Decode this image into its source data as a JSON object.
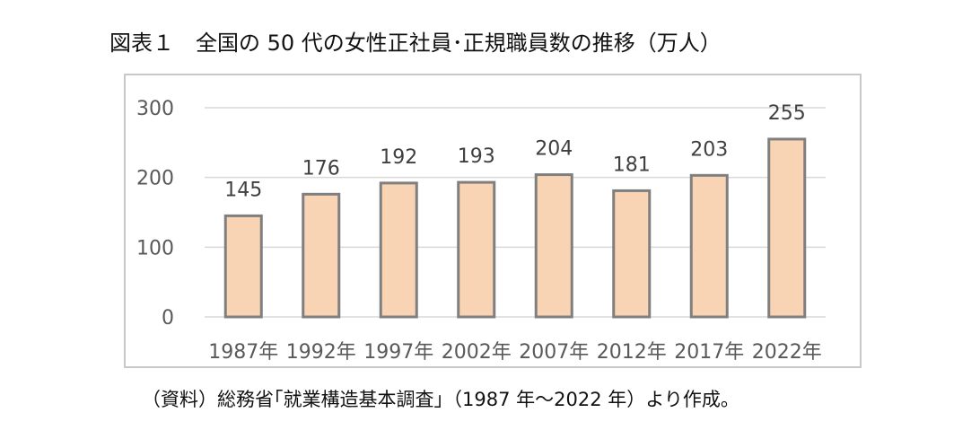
{
  "title": "図表１　全国の 50 代の女性正社員･正規職員数の推移（万人）",
  "source": "（資料）総務省｢就業構造基本調査｣（1987 年～2022 年）より作成。",
  "colors": {
    "bar_fill": "#f9d4b4",
    "bar_stroke": "#7f7f7f",
    "grid": "#d9d9d9",
    "tick_text": "#595959",
    "label_text": "#404040"
  },
  "chart_data": {
    "type": "bar",
    "title": "図表１　全国の 50 代の女性正社員･正規職員数の推移（万人）",
    "categories": [
      "1987年",
      "1992年",
      "1997年",
      "2002年",
      "2007年",
      "2012年",
      "2017年",
      "2022年"
    ],
    "values": [
      145,
      176,
      192,
      193,
      204,
      181,
      203,
      255
    ],
    "ylim": [
      0,
      300
    ],
    "yticks": [
      0,
      100,
      200,
      300
    ],
    "grid": true,
    "legend": false,
    "data_labels": true
  }
}
